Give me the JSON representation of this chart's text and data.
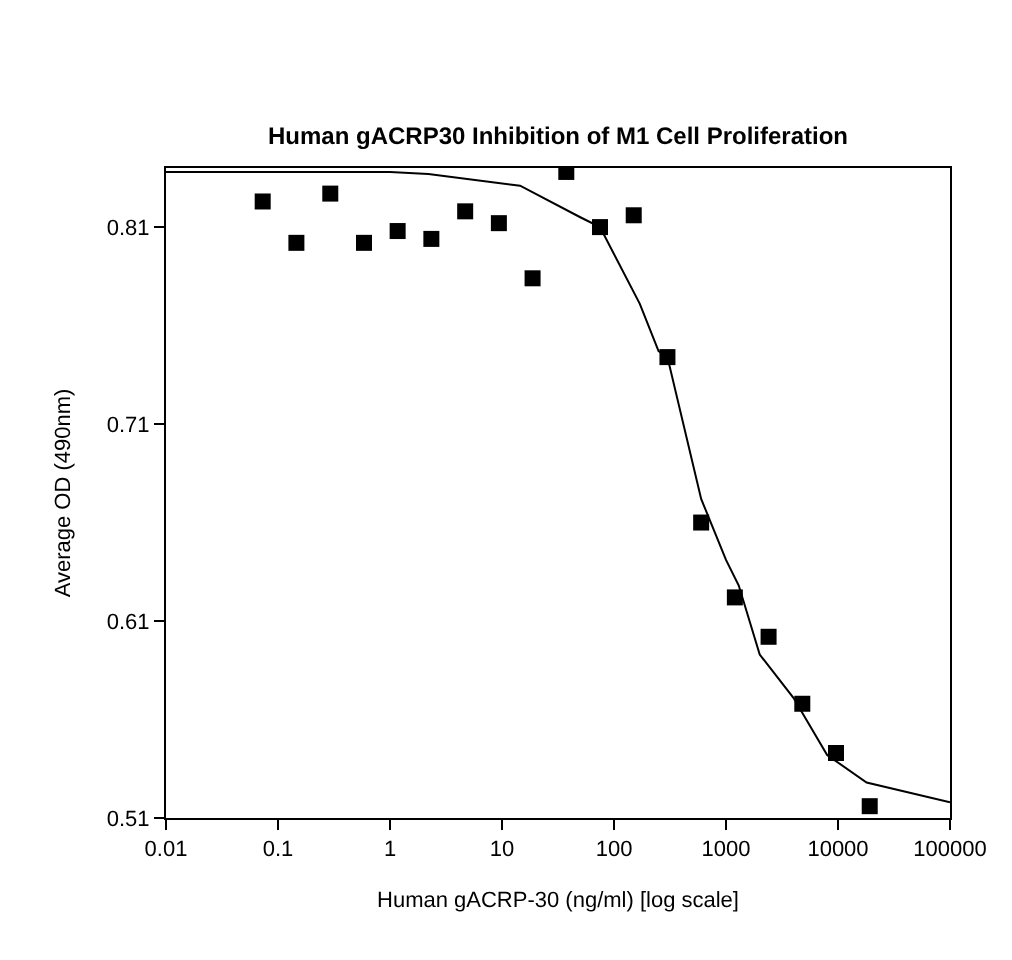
{
  "chart_data": {
    "type": "scatter",
    "title": "Human gACRP30 Inhibition of M1 Cell Proliferation",
    "xlabel": "Human gACRP-30 (ng/ml) [log scale]",
    "ylabel": "Average OD (490nm)",
    "log": "x",
    "marker": "square",
    "xlim": [
      0.01,
      100000
    ],
    "xticks": [
      0.01,
      0.1,
      1,
      10,
      100,
      1000,
      10000,
      100000
    ],
    "ylim": [
      0.51,
      0.84
    ],
    "yticks": [
      0.51,
      0.61,
      0.71,
      0.81
    ],
    "series": [
      {
        "color": "#000000",
        "x": [
          0.073,
          0.146,
          0.293,
          0.586,
          1.17,
          2.34,
          4.69,
          9.38,
          18.75,
          37.5,
          75,
          150,
          300,
          600,
          1200,
          2400,
          4800,
          9600,
          19200
        ],
        "values": [
          0.823,
          0.802,
          0.827,
          0.802,
          0.808,
          0.804,
          0.818,
          0.812,
          0.784,
          0.838,
          0.81,
          0.816,
          0.744,
          0.66,
          0.622,
          0.602,
          0.568,
          0.543,
          0.516
        ]
      },
      {
        "type": "line",
        "color": "#000000",
        "marker": "none",
        "line_style": "solid",
        "x": [
          0.01,
          1,
          2.2,
          14.5,
          50,
          75,
          170,
          250,
          300,
          600,
          1000,
          1300,
          2000,
          4000,
          8000,
          18000,
          100000
        ],
        "values": [
          0.838,
          0.838,
          0.837,
          0.831,
          0.815,
          0.81,
          0.771,
          0.747,
          0.744,
          0.672,
          0.641,
          0.628,
          0.593,
          0.571,
          0.542,
          0.528,
          0.518
        ]
      }
    ]
  }
}
